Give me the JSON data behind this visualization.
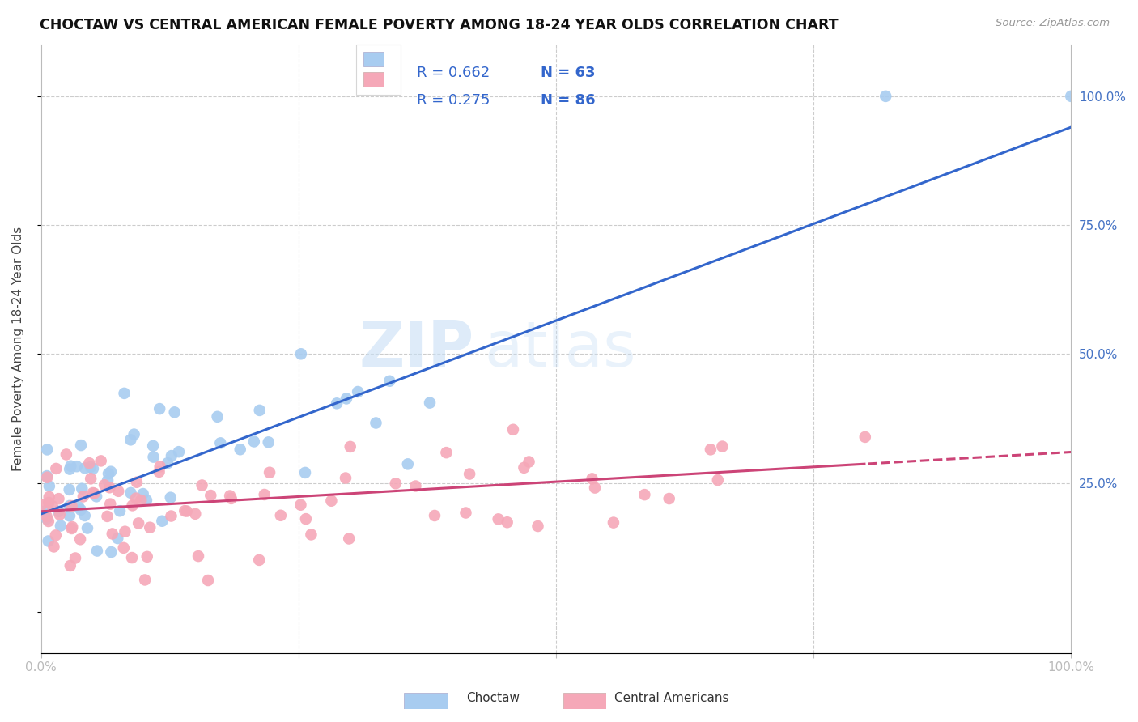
{
  "title": "CHOCTAW VS CENTRAL AMERICAN FEMALE POVERTY AMONG 18-24 YEAR OLDS CORRELATION CHART",
  "source": "Source: ZipAtlas.com",
  "ylabel": "Female Poverty Among 18-24 Year Olds",
  "watermark_zip": "ZIP",
  "watermark_atlas": "atlas",
  "legend_r1": "R = 0.662",
  "legend_n1": "N = 63",
  "legend_r2": "R = 0.275",
  "legend_n2": "N = 86",
  "choctaw_color": "#a8ccf0",
  "choctaw_line_color": "#3366cc",
  "central_color": "#f5a8b8",
  "central_line_color": "#cc4477",
  "background_color": "#ffffff",
  "grid_color": "#cccccc",
  "right_tick_color": "#4472c4",
  "choctaw_slope": 0.75,
  "choctaw_intercept": 0.19,
  "central_slope": 0.115,
  "central_intercept": 0.195
}
